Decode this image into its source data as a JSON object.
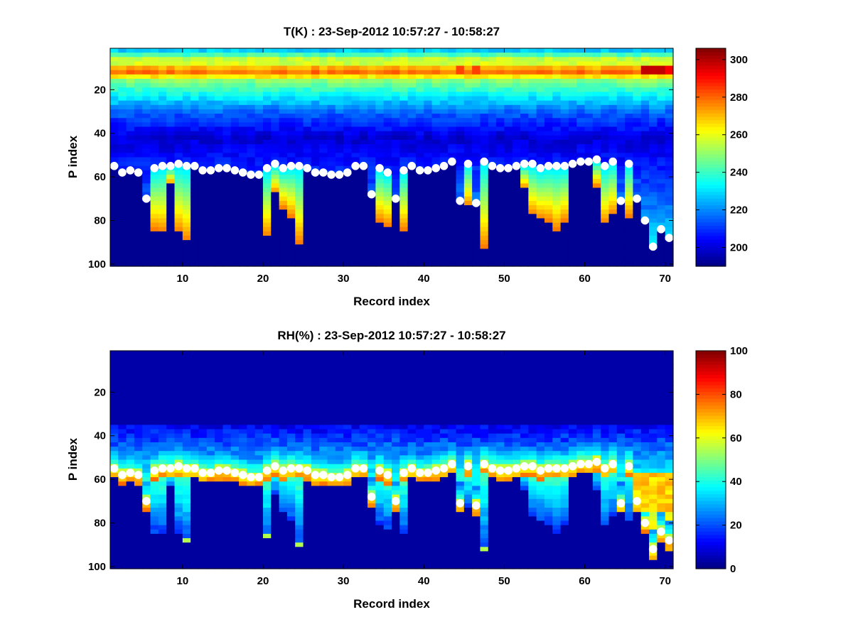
{
  "chart_data": [
    {
      "type": "heatmap",
      "title": "T(K) : 23-Sep-2012 10:57:27 - 10:58:27",
      "xlabel": "Record index",
      "ylabel": "P index",
      "xlim": [
        1,
        71
      ],
      "ylim": [
        1,
        101
      ],
      "y_reversed": true,
      "xticks": [
        10,
        20,
        30,
        40,
        50,
        60,
        70
      ],
      "yticks": [
        20,
        40,
        60,
        80,
        100
      ],
      "colorbar": {
        "min": 190,
        "max": 306,
        "ticks": [
          200,
          220,
          240,
          260,
          280,
          300
        ],
        "colormap": "jet"
      },
      "background_value": 192,
      "warm_band_p": [
        8,
        14
      ],
      "boundary_p": [
        55,
        58,
        57,
        58,
        70,
        56,
        55,
        55,
        54,
        55,
        55,
        57,
        57,
        56,
        56,
        57,
        58,
        59,
        59,
        56,
        54,
        56,
        55,
        55,
        56,
        58,
        58,
        59,
        59,
        58,
        55,
        55,
        68,
        56,
        58,
        70,
        57,
        55,
        57,
        57,
        56,
        55,
        53,
        71,
        54,
        72,
        53,
        55,
        56,
        56,
        55,
        54,
        54,
        56,
        55,
        55,
        55,
        54,
        53,
        53,
        52,
        55,
        53,
        71,
        54,
        70,
        80,
        92,
        84,
        88
      ],
      "warm_bottom_p": [
        null,
        null,
        null,
        null,
        70,
        84,
        85,
        63,
        85,
        89,
        null,
        null,
        null,
        null,
        null,
        null,
        null,
        null,
        null,
        87,
        67,
        74,
        78,
        90,
        null,
        null,
        null,
        null,
        null,
        null,
        null,
        null,
        68,
        80,
        82,
        70,
        84,
        null,
        null,
        null,
        null,
        null,
        null,
        71,
        73,
        72,
        92,
        null,
        null,
        null,
        null,
        65,
        77,
        79,
        80,
        84,
        80,
        null,
        null,
        null,
        64,
        81,
        77,
        71,
        78,
        70,
        80,
        92,
        84,
        88
      ],
      "points_series": "white markers at boundary_p for each record"
    },
    {
      "type": "heatmap",
      "title": "RH(%) : 23-Sep-2012 10:57:27 - 10:58:27",
      "xlabel": "Record index",
      "ylabel": "P index",
      "xlim": [
        1,
        71
      ],
      "ylim": [
        1,
        101
      ],
      "y_reversed": true,
      "xticks": [
        10,
        20,
        30,
        40,
        50,
        60,
        70
      ],
      "yticks": [
        20,
        40,
        60,
        80,
        100
      ],
      "colorbar": {
        "min": 0,
        "max": 100,
        "ticks": [
          0,
          20,
          40,
          60,
          80,
          100
        ],
        "colormap": "jet"
      },
      "background_value": 3,
      "humid_layer_p": [
        45,
        60
      ],
      "points_series": "white markers at same boundary_p as T panel"
    }
  ]
}
